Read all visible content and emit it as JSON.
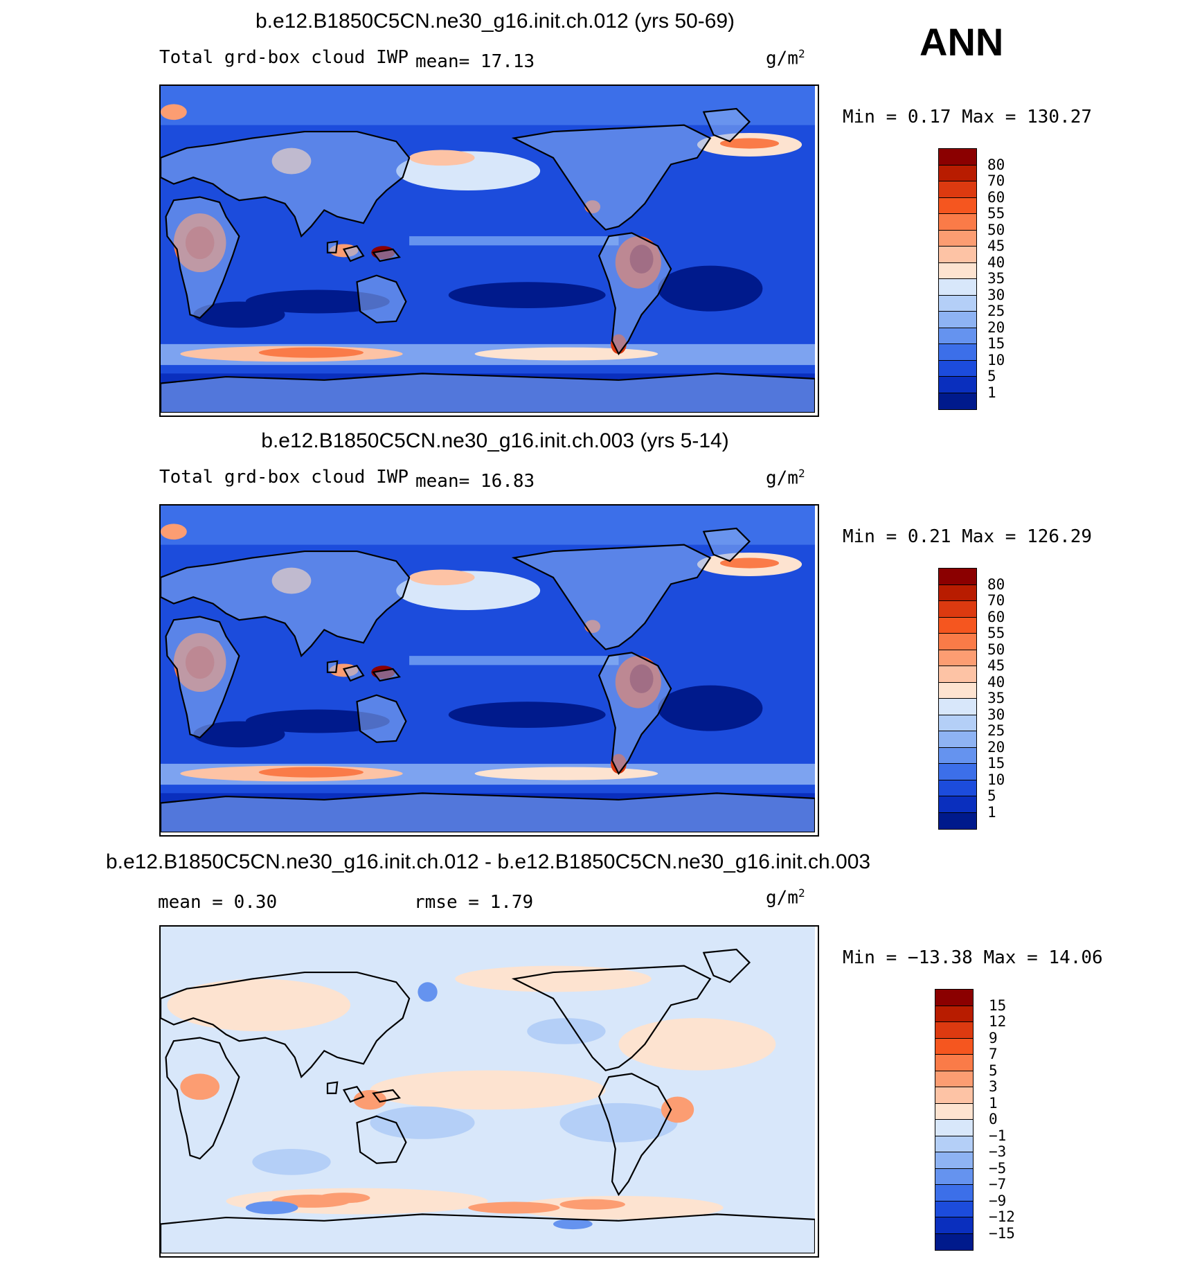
{
  "season": "ANN",
  "panels": [
    {
      "title": "b.e12.B1850C5CN.ne30_g16.init.ch.012 (yrs 50-69)",
      "variable": "Total grd-box cloud IWP",
      "stat1": "mean=   17.13",
      "stat2": "",
      "units_base": "g/m",
      "units_exp": "2",
      "minmax": "Min =    0.17 Max = 130.27",
      "legend_labels": [
        "80",
        "70",
        "60",
        "55",
        "50",
        "45",
        "40",
        "35",
        "30",
        "25",
        "20",
        "15",
        "10",
        "5",
        "1"
      ],
      "legend_colors": [
        "#8b0000",
        "#b81c00",
        "#dc3a10",
        "#f5561f",
        "#fa7b48",
        "#fc9d72",
        "#fdc3a5",
        "#fde3d0",
        "#d8e7fa",
        "#b4cff7",
        "#8eb3f3",
        "#6593ef",
        "#3c6fe9",
        "#1c4cdc",
        "#0a2fbe",
        "#001a8c"
      ]
    },
    {
      "title": "b.e12.B1850C5CN.ne30_g16.init.ch.003 (yrs 5-14)",
      "variable": "Total grd-box cloud IWP",
      "stat1": "mean=   16.83",
      "stat2": "",
      "units_base": "g/m",
      "units_exp": "2",
      "minmax": "Min =    0.21 Max = 126.29",
      "legend_labels": [
        "80",
        "70",
        "60",
        "55",
        "50",
        "45",
        "40",
        "35",
        "30",
        "25",
        "20",
        "15",
        "10",
        "5",
        "1"
      ],
      "legend_colors": [
        "#8b0000",
        "#b81c00",
        "#dc3a10",
        "#f5561f",
        "#fa7b48",
        "#fc9d72",
        "#fdc3a5",
        "#fde3d0",
        "#d8e7fa",
        "#b4cff7",
        "#8eb3f3",
        "#6593ef",
        "#3c6fe9",
        "#1c4cdc",
        "#0a2fbe",
        "#001a8c"
      ]
    },
    {
      "title": "b.e12.B1850C5CN.ne30_g16.init.ch.012 - b.e12.B1850C5CN.ne30_g16.init.ch.003",
      "variable": "",
      "stat1": "mean =    0.30",
      "stat2": "rmse =    1.79",
      "units_base": "g/m",
      "units_exp": "2",
      "minmax": "Min = −13.38 Max =   14.06",
      "legend_labels": [
        "15",
        "12",
        "9",
        "7",
        "5",
        "3",
        "1",
        "0",
        "−1",
        "−3",
        "−5",
        "−7",
        "−9",
        "−12",
        "−15"
      ],
      "legend_colors": [
        "#8b0000",
        "#b81c00",
        "#dc3a10",
        "#f5561f",
        "#fa7b48",
        "#fc9d72",
        "#fdc3a5",
        "#fde3d0",
        "#d8e7fa",
        "#b4cff7",
        "#8eb3f3",
        "#6593ef",
        "#3c6fe9",
        "#1c4cdc",
        "#0a2fbe",
        "#001a8c"
      ]
    }
  ]
}
